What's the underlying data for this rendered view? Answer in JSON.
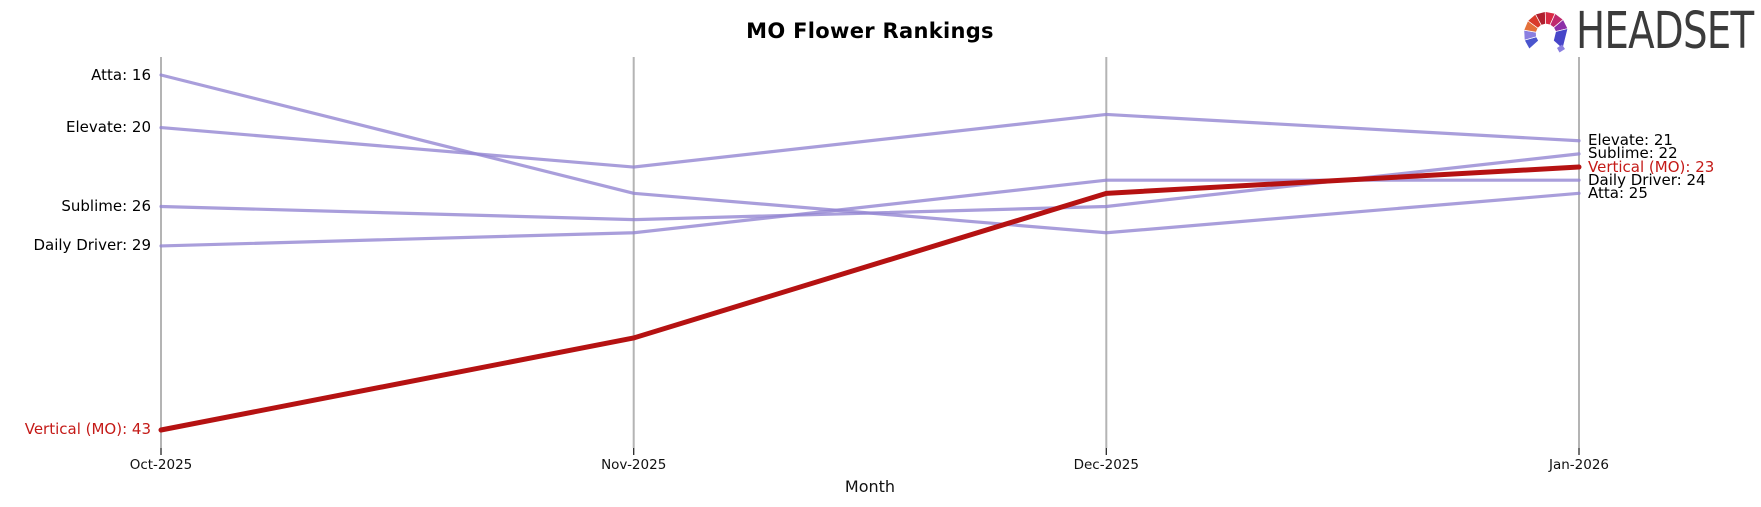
{
  "header": {
    "logo_text": "HEADSET",
    "logo_text_color": "#3b3b3b",
    "logo_icon": "headset-logo-icon",
    "logo_icon_colors": [
      "#4a55cd",
      "#8a7fe0",
      "#e4703a",
      "#d93b2c",
      "#b01f2e",
      "#d92b44",
      "#bf2a6e",
      "#8c2fa8",
      "#4746c9"
    ]
  },
  "chart_data": {
    "type": "line",
    "subtype": "bump-ranking-chart",
    "title": "MO Flower Rankings",
    "xlabel": "Month",
    "ylabel": "",
    "x": [
      "Oct-2025",
      "Nov-2025",
      "Dec-2025",
      "Jan-2026"
    ],
    "y_axis": {
      "meaning": "rank (lower number = better, plotted higher)",
      "top_rank": 16,
      "bottom_rank": 43,
      "inverted": true
    },
    "grid": "vertical axis line per month, no horizontal grid",
    "legend_position": "none (direct labels at line endpoints)",
    "series": [
      {
        "name": "Atta",
        "values": [
          16,
          25,
          28,
          25
        ],
        "color": "#9486d2",
        "width": 3.2,
        "highlight": false
      },
      {
        "name": "Elevate",
        "values": [
          20,
          23,
          19,
          21
        ],
        "color": "#9486d2",
        "width": 3.2,
        "highlight": false
      },
      {
        "name": "Sublime",
        "values": [
          26,
          27,
          26,
          22
        ],
        "color": "#9486d2",
        "width": 3.2,
        "highlight": false
      },
      {
        "name": "Daily Driver",
        "values": [
          29,
          28,
          24,
          24
        ],
        "color": "#9486d2",
        "width": 3.2,
        "highlight": false
      },
      {
        "name": "Vertical (MO)",
        "values": [
          43,
          36,
          25,
          23
        ],
        "color": "#b51212",
        "width": 5,
        "highlight": true
      }
    ],
    "left_labels": [
      {
        "text": "Atta: 16",
        "rank": 16,
        "color": "#000000"
      },
      {
        "text": "Elevate: 20",
        "rank": 20,
        "color": "#000000"
      },
      {
        "text": "Sublime: 26",
        "rank": 26,
        "color": "#000000"
      },
      {
        "text": "Daily Driver: 29",
        "rank": 29,
        "color": "#000000"
      },
      {
        "text": "Vertical (MO): 43",
        "rank": 43,
        "color": "#c41a17"
      }
    ],
    "right_labels": [
      {
        "text": "Elevate: 21",
        "rank": 21,
        "color": "#000000"
      },
      {
        "text": "Sublime: 22",
        "rank": 22,
        "color": "#000000"
      },
      {
        "text": "Vertical (MO): 23",
        "rank": 23,
        "color": "#c41a17"
      },
      {
        "text": "Daily Driver: 24",
        "rank": 24,
        "color": "#000000"
      },
      {
        "text": "Atta: 25",
        "rank": 25,
        "color": "#000000"
      }
    ],
    "colors": {
      "axis_line": "#b4b4b4",
      "tick": "#262626",
      "purple_series": "#9486d2",
      "highlight_series": "#b51212"
    }
  }
}
